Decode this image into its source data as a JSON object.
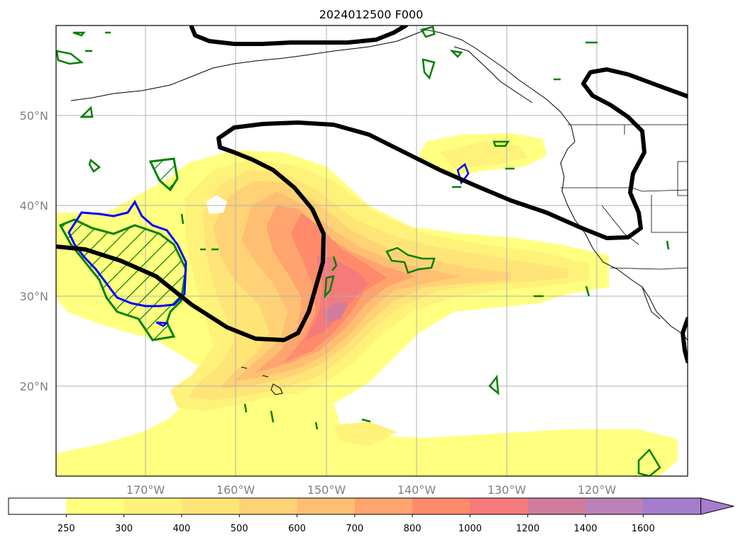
{
  "title": "2024012500 F000",
  "lat_labels": [
    "50°N",
    "40°N",
    "30°N",
    "20°N"
  ],
  "lon_labels": [
    "170°W",
    "160°W",
    "150°W",
    "140°W",
    "130°W",
    "120°W"
  ],
  "colorbar": {
    "ticks": [
      "250",
      "300",
      "400",
      "500",
      "600",
      "700",
      "800",
      "1000",
      "1200",
      "1400",
      "1600"
    ],
    "colors": [
      "#ffffff",
      "#ffff80",
      "#fff27a",
      "#ffe477",
      "#ffd276",
      "#ffbf72",
      "#ffa46e",
      "#ff8a6c",
      "#f57a7c",
      "#d27c9c",
      "#bb80b8",
      "#a67ccc"
    ],
    "extend": "max"
  },
  "map": {
    "grid": true,
    "lat_range": [
      10,
      60
    ],
    "lon_range": [
      -180,
      -110
    ],
    "colors": {
      "contour_black": "#000000",
      "hatch_green": "#008000",
      "outline_blue": "#0000ff",
      "coastline": "#000000",
      "grid": "#b0b0b0"
    }
  }
}
